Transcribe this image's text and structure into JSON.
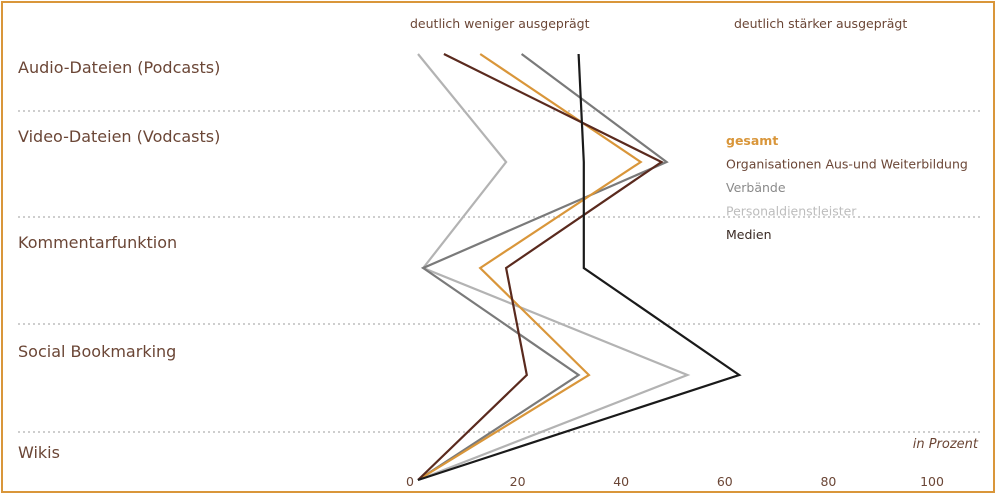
{
  "chart_data": {
    "type": "line",
    "orientation": "vertical-profile",
    "header_left": "deutlich weniger ausgeprägt",
    "header_right": "deutlich stärker ausgeprägt",
    "unit_label": "in Prozent",
    "categories": [
      "Audio-Dateien (Podcasts)",
      "Video-Dateien (Vodcasts)",
      "Kommentarfunktion",
      "Social Bookmarking",
      "Wikis"
    ],
    "x_ticks": [
      "0",
      "20",
      "40",
      "60",
      "80",
      "100"
    ],
    "xlim": [
      0,
      100
    ],
    "grid": false,
    "legend_position": "right",
    "series": [
      {
        "name": "Personaldienstleister",
        "color": "#b3b3b3",
        "values": [
          0,
          17,
          1,
          52,
          0
        ]
      },
      {
        "name": "Verbände",
        "color": "#7a7a7a",
        "values": [
          20,
          48,
          1,
          31,
          0
        ]
      },
      {
        "name": "gesamt",
        "color": "#d9963a",
        "values": [
          12,
          43,
          12,
          33,
          0
        ]
      },
      {
        "name": "Organisationen Aus-und Weiterbildung",
        "color": "#5a2a1e",
        "values": [
          5,
          47,
          17,
          21,
          0
        ]
      },
      {
        "name": "Medien",
        "color": "#1a1a1a",
        "values": [
          31,
          32,
          32,
          62,
          0
        ]
      }
    ],
    "legend_order": [
      "gesamt",
      "Organisationen Aus-und Weiterbildung",
      "Verbände",
      "Personaldienstleister",
      "Medien"
    ],
    "legend_colors": {
      "gesamt": "#d9963a",
      "Organisationen Aus-und Weiterbildung": "#6b4636",
      "Verbände": "#8a8a8a",
      "Personaldienstleister": "#bdbdbd",
      "Medien": "#3a2a24"
    }
  }
}
